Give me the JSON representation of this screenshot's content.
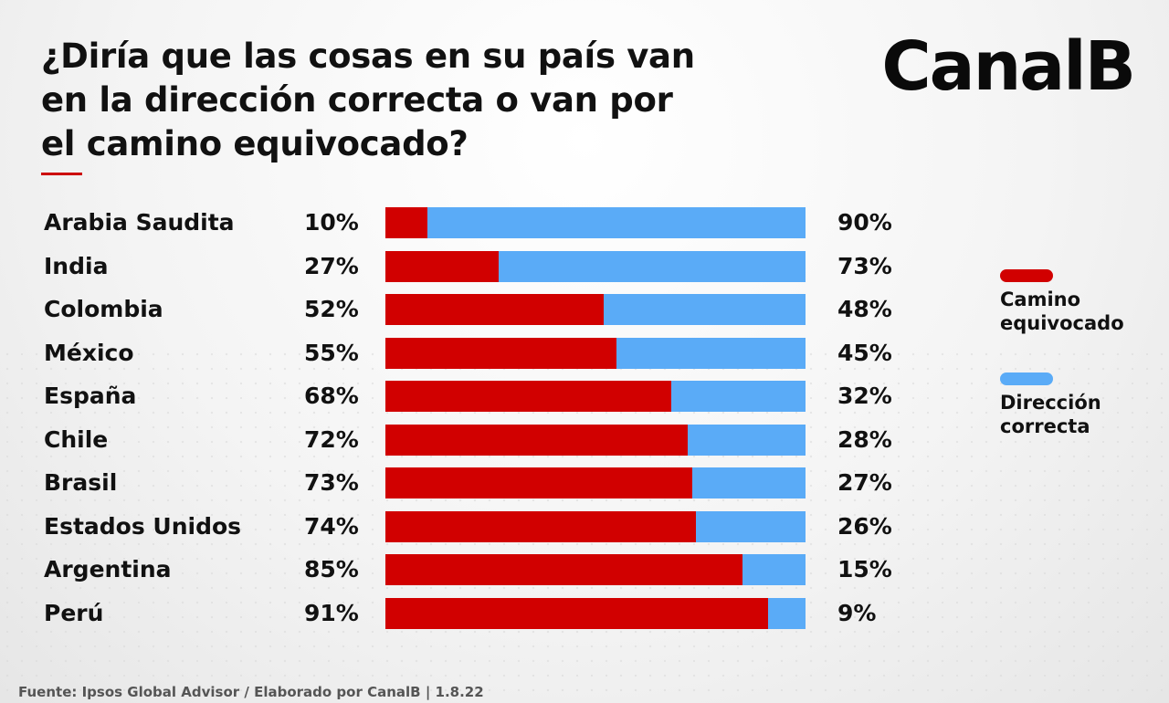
{
  "brand": {
    "logo_text": "CanalB"
  },
  "chart_data": {
    "type": "bar",
    "stacked": true,
    "orientation": "horizontal",
    "title_lines": [
      "¿Diría que las cosas en su país van",
      "en la dirección correcta o van por",
      "el camino equivocado?"
    ],
    "categories": [
      "Arabia Saudita",
      "India",
      "Colombia",
      "México",
      "España",
      "Chile",
      "Brasil",
      "Estados Unidos",
      "Argentina",
      "Perú"
    ],
    "series": [
      {
        "name": "Camino equivocado",
        "color": "#d10000",
        "values": [
          10,
          27,
          52,
          55,
          68,
          72,
          73,
          74,
          85,
          91
        ]
      },
      {
        "name": "Dirección correcta",
        "color": "#5aabf7",
        "values": [
          90,
          73,
          48,
          45,
          32,
          28,
          27,
          26,
          15,
          9
        ]
      }
    ],
    "value_suffix": "%",
    "xlim": [
      0,
      100
    ],
    "legend_position": "right",
    "legend": [
      {
        "lines": [
          "Camino",
          "equivocado"
        ],
        "color": "#d10000"
      },
      {
        "lines": [
          "Dirección",
          "correcta"
        ],
        "color": "#5aabf7"
      }
    ]
  },
  "footer": {
    "source": "Fuente: Ipsos Global Advisor / Elaborado por CanalB  |  1.8.22"
  }
}
